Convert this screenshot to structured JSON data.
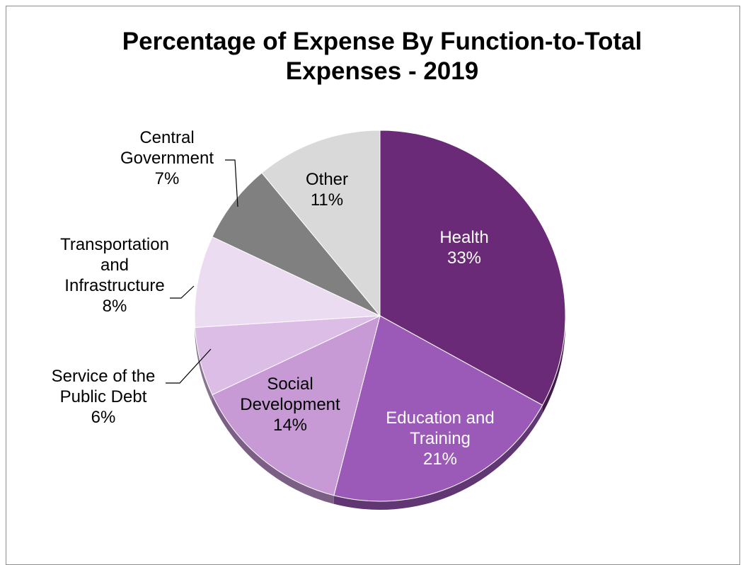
{
  "chart_data": {
    "type": "pie",
    "title": "Percentage of Expense By Function-to-Total Expenses - 2019",
    "title_lines": [
      "Percentage of Expense By Function-to-Total",
      "Expenses - 2019"
    ],
    "slices": [
      {
        "label": "Health",
        "label_lines": [
          "Health"
        ],
        "value": 33,
        "pct_label": "33%",
        "color": "#6b2a78",
        "text_color": "#ffffff",
        "label_inside": true
      },
      {
        "label": "Education and Training",
        "label_lines": [
          "Education and",
          "Training"
        ],
        "value": 21,
        "pct_label": "21%",
        "color": "#9b59b8",
        "text_color": "#ffffff",
        "label_inside": true
      },
      {
        "label": "Social Development",
        "label_lines": [
          "Social",
          "Development"
        ],
        "value": 14,
        "pct_label": "14%",
        "color": "#c79ad6",
        "text_color": "#000000",
        "label_inside": true
      },
      {
        "label": "Service of the Public Debt",
        "label_lines": [
          "Service of the",
          "Public Debt"
        ],
        "value": 6,
        "pct_label": "6%",
        "color": "#dcbde6",
        "text_color": "#000000",
        "label_inside": false
      },
      {
        "label": "Transportation and Infrastructure",
        "label_lines": [
          "Transportation",
          "and",
          "Infrastructure"
        ],
        "value": 8,
        "pct_label": "8%",
        "color": "#ecdcf1",
        "text_color": "#000000",
        "label_inside": false
      },
      {
        "label": "Central Government",
        "label_lines": [
          "Central",
          "Government"
        ],
        "value": 7,
        "pct_label": "7%",
        "color": "#808080",
        "text_color": "#000000",
        "label_inside": false
      },
      {
        "label": "Other",
        "label_lines": [
          "Other"
        ],
        "value": 11,
        "pct_label": "11%",
        "color": "#d9d9d9",
        "text_color": "#000000",
        "label_inside": true
      }
    ],
    "legend": "none"
  }
}
